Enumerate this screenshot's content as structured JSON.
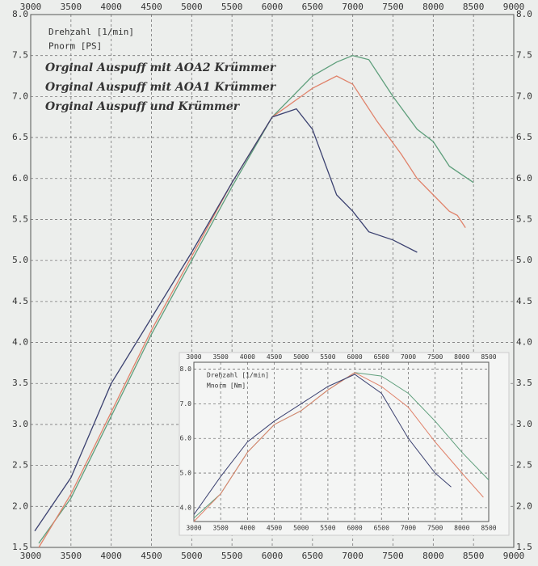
{
  "chart_data": [
    {
      "type": "line",
      "x_label": "Drehzahl [1/min]",
      "y_label": "Pnorm [PS]",
      "grid": true,
      "xlim": [
        3000,
        9000
      ],
      "xticks": [
        3000,
        3500,
        4000,
        4500,
        5000,
        5500,
        6000,
        6500,
        7000,
        7500,
        8000,
        8500,
        9000
      ],
      "ylim": [
        1.5,
        8
      ],
      "yticks": [
        1.5,
        {
          "value": 2,
          "label": "2.0"
        },
        2.5,
        {
          "value": 3,
          "label": "3.0"
        },
        3.5,
        {
          "value": 4,
          "label": "4.0"
        },
        4.5,
        {
          "value": 5,
          "label": "5.0"
        },
        5.5,
        {
          "value": 6,
          "label": "6.0"
        },
        6.5,
        {
          "value": 7,
          "label": "7.0"
        },
        7.5,
        {
          "value": 8,
          "label": "8.0"
        }
      ],
      "series": [
        {
          "name": "Orginal Auspuff mit AOA2 Krümmer",
          "color": "#5f9f7c",
          "x": [
            3100,
            3500,
            4000,
            4500,
            5000,
            5500,
            6000,
            6500,
            6800,
            7000,
            7200,
            7500,
            7800,
            8000,
            8200,
            8500
          ],
          "values": [
            1.55,
            2.1,
            3.1,
            4.1,
            5.0,
            5.9,
            6.75,
            7.25,
            7.42,
            7.5,
            7.45,
            7.0,
            6.6,
            6.45,
            6.15,
            5.95
          ]
        },
        {
          "name": "Orginal Auspuff mit AOA1 Krümmer",
          "color": "#e0826a",
          "x": [
            3100,
            3500,
            4000,
            4500,
            5000,
            5500,
            6000,
            6500,
            6800,
            7000,
            7300,
            7600,
            7800,
            8000,
            8200,
            8300,
            8400
          ],
          "values": [
            1.5,
            2.15,
            3.15,
            4.15,
            5.05,
            5.95,
            6.75,
            7.1,
            7.25,
            7.15,
            6.7,
            6.3,
            6.0,
            5.8,
            5.6,
            5.55,
            5.4
          ]
        },
        {
          "name": "Orginal Auspuff und Krümmer",
          "color": "#3b4170",
          "x": [
            3050,
            3500,
            4000,
            4500,
            5000,
            5500,
            6000,
            6300,
            6500,
            6800,
            7000,
            7200,
            7500,
            7800
          ],
          "values": [
            1.7,
            2.35,
            3.5,
            4.3,
            5.1,
            5.95,
            6.75,
            6.85,
            6.6,
            5.8,
            5.6,
            5.35,
            5.25,
            5.1
          ]
        }
      ]
    },
    {
      "type": "line",
      "x_label": "Drehzahl [1/min]",
      "y_label": "Mnorm [Nm]",
      "grid": true,
      "xlim": [
        3000,
        8500
      ],
      "xticks": [
        3000,
        3500,
        4000,
        4500,
        5000,
        5500,
        6000,
        6500,
        7000,
        7500,
        8000,
        8500
      ],
      "ylim": [
        3.6,
        8.2
      ],
      "yticks": [
        {
          "value": 4,
          "label": "4.0"
        },
        {
          "value": 5,
          "label": "5.0"
        },
        {
          "value": 6,
          "label": "6.0"
        },
        {
          "value": 7,
          "label": "7.0"
        },
        {
          "value": 8,
          "label": "8.0"
        }
      ],
      "series": [
        {
          "color": "#5f9f7c",
          "x": [
            3000,
            3500,
            4000,
            4500,
            5000,
            5500,
            6000,
            6500,
            7000,
            7500,
            8000,
            8500
          ],
          "values": [
            3.7,
            4.4,
            5.6,
            6.4,
            6.8,
            7.4,
            7.9,
            7.8,
            7.3,
            6.5,
            5.6,
            4.8
          ]
        },
        {
          "color": "#e0826a",
          "x": [
            3000,
            3500,
            4000,
            4500,
            5000,
            5500,
            6000,
            6500,
            7000,
            7500,
            8000,
            8400
          ],
          "values": [
            3.6,
            4.4,
            5.6,
            6.4,
            6.8,
            7.4,
            7.9,
            7.5,
            6.9,
            5.9,
            5.0,
            4.3
          ]
        },
        {
          "color": "#3b4170",
          "x": [
            3000,
            3500,
            4000,
            4500,
            5000,
            5500,
            6000,
            6500,
            7000,
            7500,
            7800
          ],
          "values": [
            3.8,
            4.9,
            5.9,
            6.5,
            7.0,
            7.5,
            7.85,
            7.3,
            6.0,
            5.0,
            4.6
          ]
        }
      ]
    }
  ]
}
